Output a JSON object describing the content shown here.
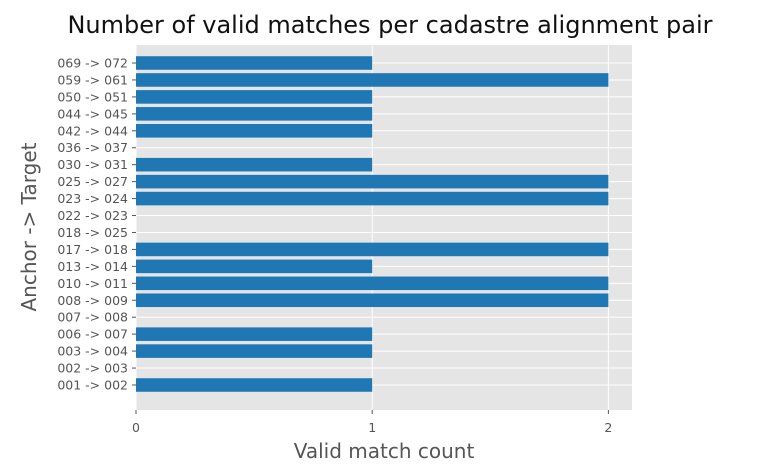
{
  "chart_data": {
    "type": "bar",
    "orientation": "horizontal",
    "title": "Number of valid matches per cadastre alignment pair",
    "xlabel": "Valid match count",
    "ylabel": "Anchor -> Target",
    "xlim": [
      0,
      2.1
    ],
    "xticks": [
      "0",
      "1",
      "2"
    ],
    "grid": true,
    "colors": {
      "bar": "#1f77b4",
      "plot_bg": "#e5e5e5",
      "grid": "#ffffff"
    },
    "categories": [
      "001 -> 002",
      "002 -> 003",
      "003 -> 004",
      "006 -> 007",
      "007 -> 008",
      "008 -> 009",
      "010 -> 011",
      "013 -> 014",
      "017 -> 018",
      "018 -> 025",
      "022 -> 023",
      "023 -> 024",
      "025 -> 027",
      "030 -> 031",
      "036 -> 037",
      "042 -> 044",
      "044 -> 045",
      "050 -> 051",
      "059 -> 061",
      "069 -> 072"
    ],
    "values": [
      1,
      0,
      1,
      1,
      0,
      2,
      2,
      1,
      2,
      0,
      0,
      2,
      2,
      1,
      0,
      1,
      1,
      1,
      2,
      1
    ]
  }
}
